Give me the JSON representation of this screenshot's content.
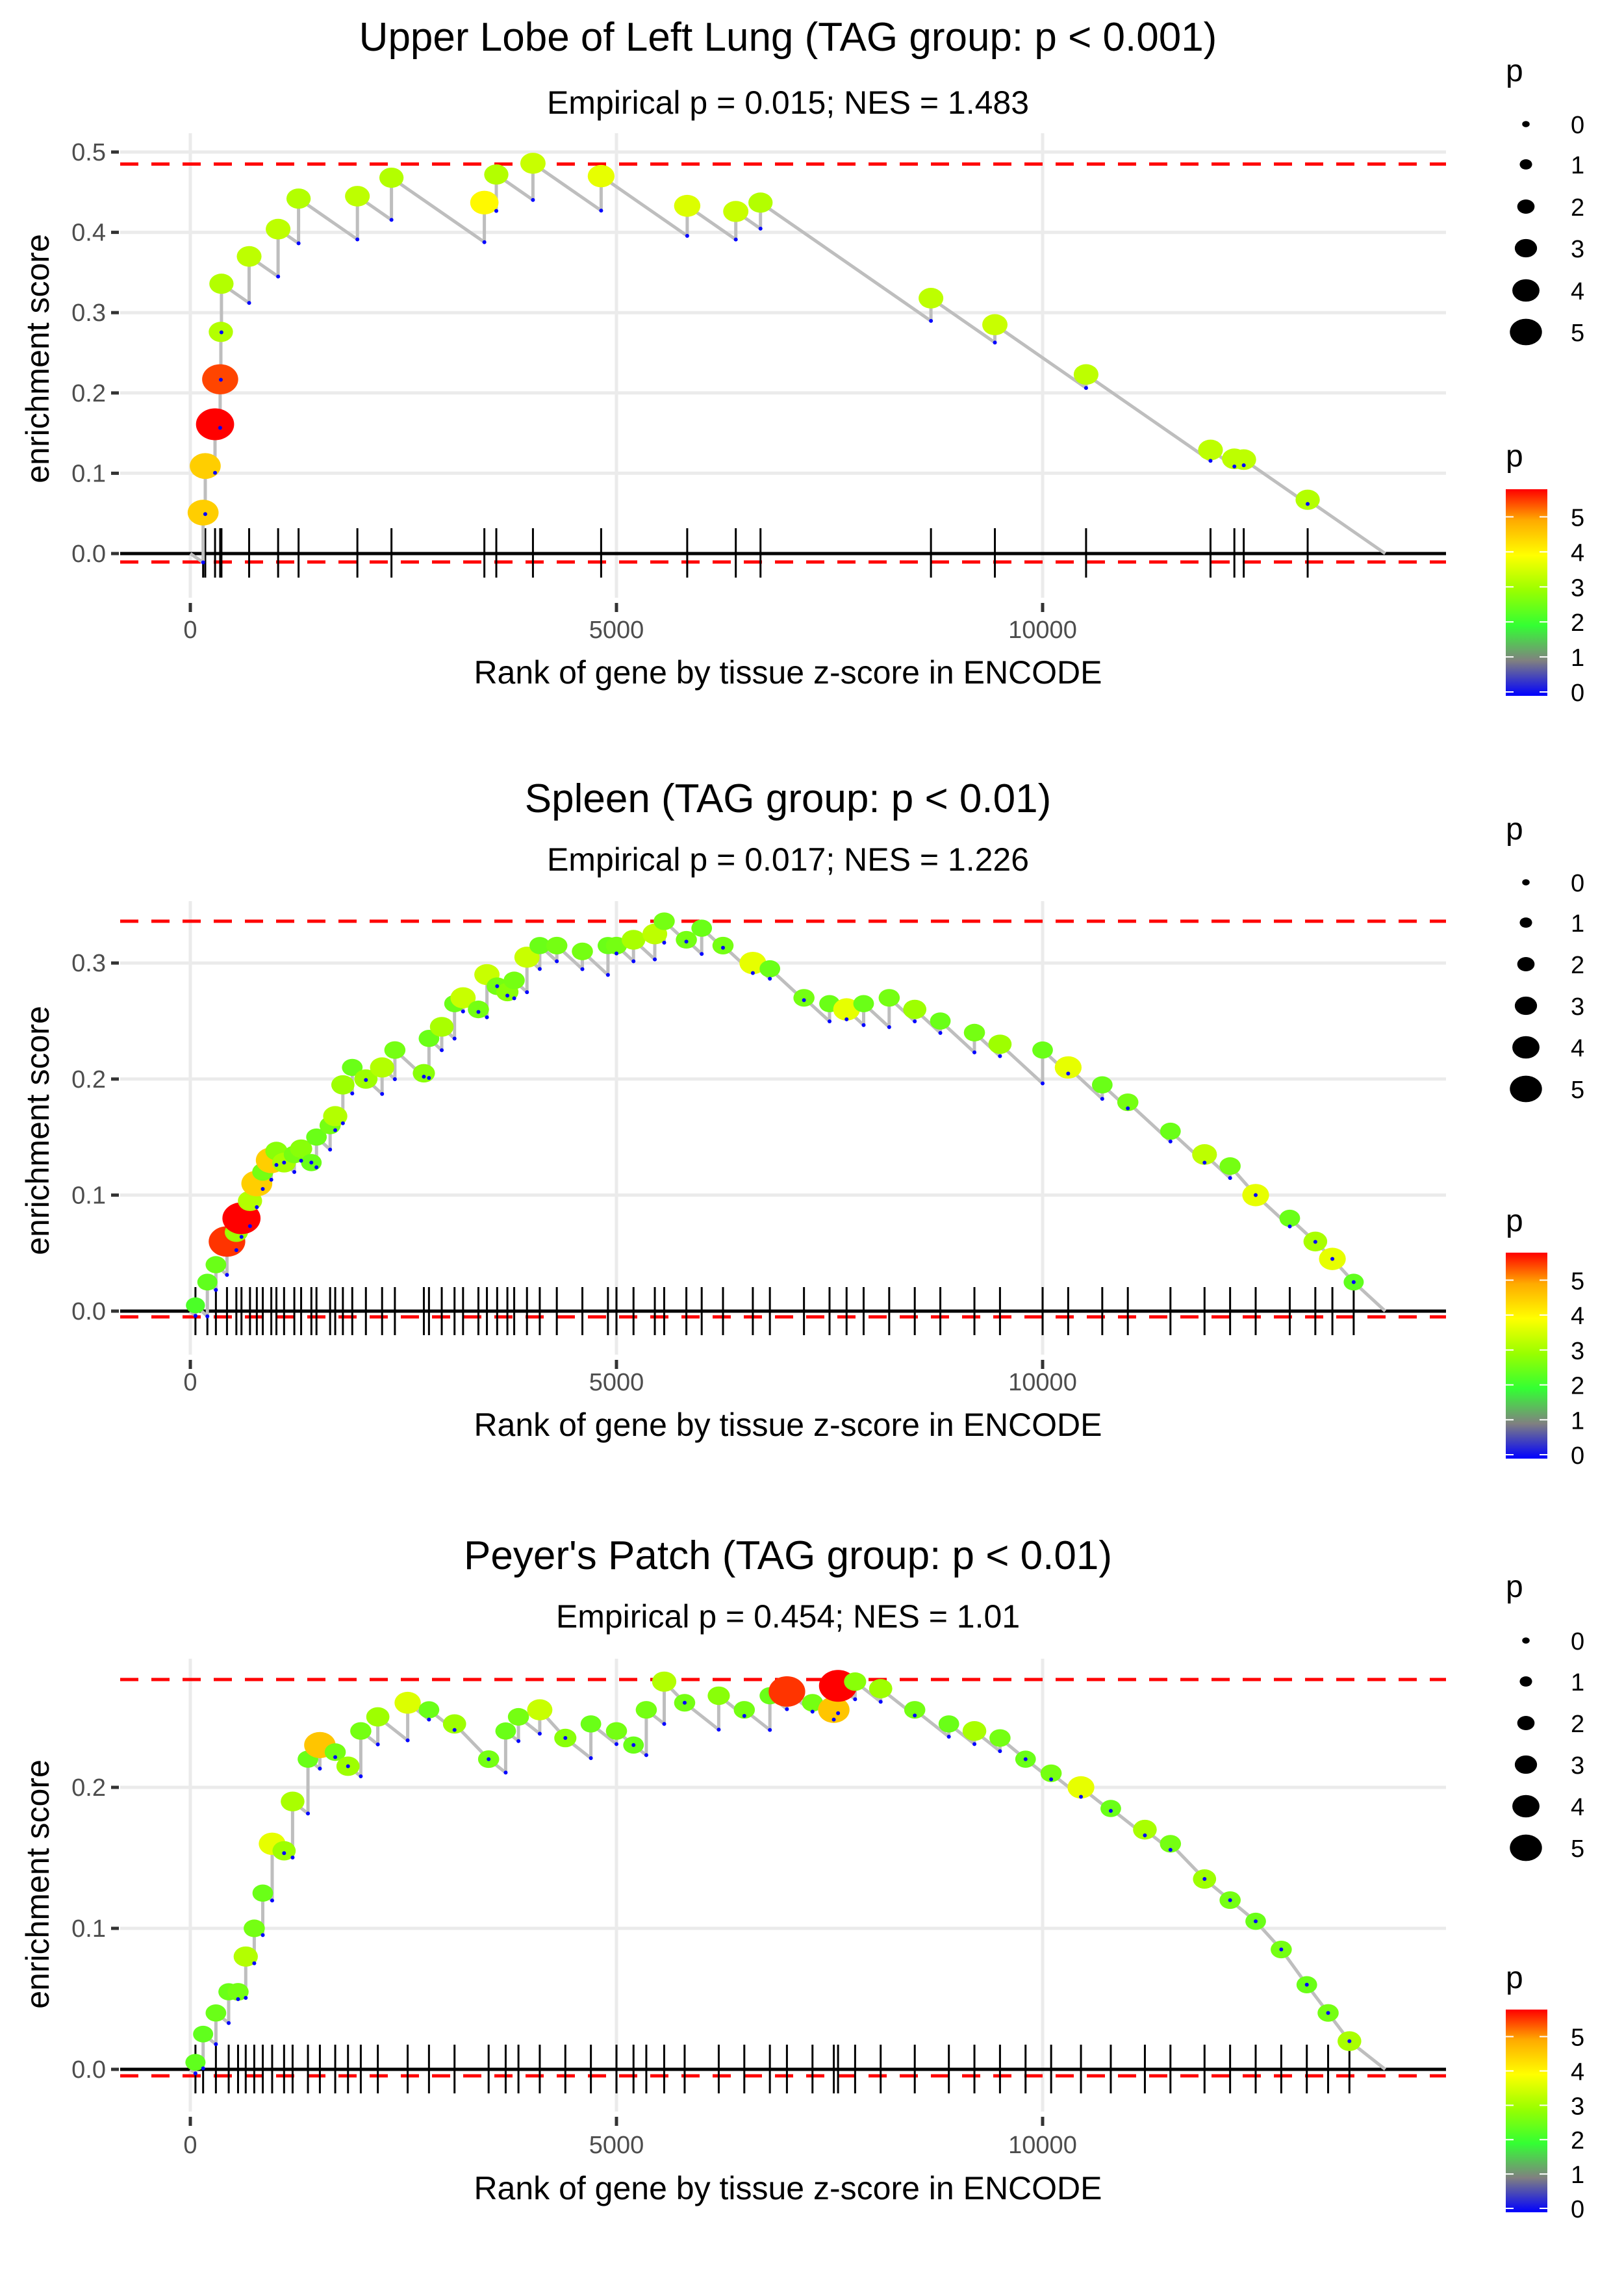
{
  "chart_data": [
    {
      "type": "line",
      "title": "Upper Lobe of Left Lung (TAG group: p < 0.001)",
      "subtitle": "Empirical p = 0.015; NES = 1.483",
      "xlabel": "Rank of gene by tissue z-score in ENCODE",
      "ylabel": "enrichment score",
      "xlim": [
        -700,
        14700
      ],
      "ylim": [
        -0.05,
        0.5
      ],
      "x_ticks": [
        0,
        5000,
        10000
      ],
      "x_tick_labels": [
        "0",
        "5000",
        "10000"
      ],
      "y_ticks": [
        0.0,
        0.1,
        0.2,
        0.3,
        0.4,
        0.5
      ],
      "y_tick_labels": [
        "0.0",
        "0.1",
        "0.2",
        "0.3",
        "0.4",
        "0.5"
      ],
      "max_es_line": 0.485,
      "min_es_line": -0.0105,
      "n_genes": 14020,
      "grid": true,
      "hits": [
        {
          "rank": 150,
          "es": 0.051,
          "p": 4.5
        },
        {
          "rank": 175,
          "es": 0.109,
          "p": 4.5
        },
        {
          "rank": 290,
          "es": 0.161,
          "p": 5.9
        },
        {
          "rank": 350,
          "es": 0.217,
          "p": 5.5
        },
        {
          "rank": 358,
          "es": 0.276,
          "p": 3.2
        },
        {
          "rank": 365,
          "es": 0.336,
          "p": 3.2
        },
        {
          "rank": 690,
          "es": 0.37,
          "p": 3.3
        },
        {
          "rank": 1030,
          "es": 0.404,
          "p": 3.3
        },
        {
          "rank": 1270,
          "es": 0.442,
          "p": 3.2
        },
        {
          "rank": 1960,
          "es": 0.445,
          "p": 3.3
        },
        {
          "rank": 2360,
          "es": 0.468,
          "p": 3.2
        },
        {
          "rank": 3450,
          "es": 0.437,
          "p": 4.0
        },
        {
          "rank": 3590,
          "es": 0.472,
          "p": 3.2
        },
        {
          "rank": 4020,
          "es": 0.486,
          "p": 3.4
        },
        {
          "rank": 4820,
          "es": 0.47,
          "p": 3.7
        },
        {
          "rank": 5830,
          "es": 0.433,
          "p": 3.6
        },
        {
          "rank": 6400,
          "es": 0.426,
          "p": 3.4
        },
        {
          "rank": 6690,
          "es": 0.437,
          "p": 3.2
        },
        {
          "rank": 8690,
          "es": 0.318,
          "p": 3.3
        },
        {
          "rank": 9440,
          "es": 0.285,
          "p": 3.4
        },
        {
          "rank": 10510,
          "es": 0.223,
          "p": 3.3
        },
        {
          "rank": 11970,
          "es": 0.129,
          "p": 3.3
        },
        {
          "rank": 12250,
          "es": 0.118,
          "p": 3.3
        },
        {
          "rank": 12360,
          "es": 0.117,
          "p": 3.3
        },
        {
          "rank": 13110,
          "es": 0.067,
          "p": 3.2
        }
      ]
    },
    {
      "type": "line",
      "title": "Spleen (TAG group: p < 0.01)",
      "subtitle": "Empirical p = 0.017; NES = 1.226",
      "xlabel": "Rank of gene by tissue z-score in ENCODE",
      "ylabel": "enrichment score",
      "xlim": [
        -700,
        14700
      ],
      "ylim": [
        -0.04,
        0.345
      ],
      "x_ticks": [
        0,
        5000,
        10000
      ],
      "x_tick_labels": [
        "0",
        "5000",
        "10000"
      ],
      "y_ticks": [
        0.0,
        0.1,
        0.2,
        0.3
      ],
      "y_tick_labels": [
        "0.0",
        "0.1",
        "0.2",
        "0.3"
      ],
      "max_es_line": 0.336,
      "min_es_line": -0.005,
      "n_genes": 14020,
      "grid": true,
      "hits": [
        {
          "rank": 60,
          "es": 0.005,
          "p": 2.2
        },
        {
          "rank": 200,
          "es": 0.025,
          "p": 2.4
        },
        {
          "rank": 300,
          "es": 0.04,
          "p": 2.5
        },
        {
          "rank": 430,
          "es": 0.06,
          "p": 5.6
        },
        {
          "rank": 540,
          "es": 0.068,
          "p": 3.0
        },
        {
          "rank": 600,
          "es": 0.08,
          "p": 5.9
        },
        {
          "rank": 700,
          "es": 0.095,
          "p": 3.2
        },
        {
          "rank": 780,
          "es": 0.11,
          "p": 4.5
        },
        {
          "rank": 850,
          "es": 0.12,
          "p": 2.6
        },
        {
          "rank": 950,
          "es": 0.13,
          "p": 4.5
        },
        {
          "rank": 1010,
          "es": 0.138,
          "p": 2.8
        },
        {
          "rank": 1100,
          "es": 0.128,
          "p": 3.1
        },
        {
          "rank": 1220,
          "es": 0.135,
          "p": 2.6
        },
        {
          "rank": 1300,
          "es": 0.14,
          "p": 2.8
        },
        {
          "rank": 1420,
          "es": 0.128,
          "p": 2.5
        },
        {
          "rank": 1480,
          "es": 0.15,
          "p": 2.5
        },
        {
          "rank": 1640,
          "es": 0.16,
          "p": 2.6
        },
        {
          "rank": 1700,
          "es": 0.168,
          "p": 3.2
        },
        {
          "rank": 1790,
          "es": 0.195,
          "p": 3.0
        },
        {
          "rank": 1900,
          "es": 0.21,
          "p": 2.5
        },
        {
          "rank": 2060,
          "es": 0.2,
          "p": 3.0
        },
        {
          "rank": 2250,
          "es": 0.21,
          "p": 3.2
        },
        {
          "rank": 2400,
          "es": 0.225,
          "p": 2.6
        },
        {
          "rank": 2740,
          "es": 0.205,
          "p": 2.8
        },
        {
          "rank": 2800,
          "es": 0.235,
          "p": 2.5
        },
        {
          "rank": 2950,
          "es": 0.245,
          "p": 3.1
        },
        {
          "rank": 3100,
          "es": 0.265,
          "p": 2.5
        },
        {
          "rank": 3200,
          "es": 0.27,
          "p": 3.4
        },
        {
          "rank": 3380,
          "es": 0.26,
          "p": 2.6
        },
        {
          "rank": 3480,
          "es": 0.29,
          "p": 3.4
        },
        {
          "rank": 3600,
          "es": 0.28,
          "p": 2.6
        },
        {
          "rank": 3720,
          "es": 0.275,
          "p": 2.8
        },
        {
          "rank": 3800,
          "es": 0.285,
          "p": 2.6
        },
        {
          "rank": 3950,
          "es": 0.305,
          "p": 3.4
        },
        {
          "rank": 4100,
          "es": 0.315,
          "p": 2.5
        },
        {
          "rank": 4300,
          "es": 0.315,
          "p": 2.6
        },
        {
          "rank": 4600,
          "es": 0.31,
          "p": 2.6
        },
        {
          "rank": 4900,
          "es": 0.315,
          "p": 2.5
        },
        {
          "rank": 5000,
          "es": 0.315,
          "p": 2.6
        },
        {
          "rank": 5200,
          "es": 0.32,
          "p": 3.1
        },
        {
          "rank": 5450,
          "es": 0.325,
          "p": 3.3
        },
        {
          "rank": 5560,
          "es": 0.336,
          "p": 2.6
        },
        {
          "rank": 5820,
          "es": 0.32,
          "p": 2.6
        },
        {
          "rank": 6000,
          "es": 0.33,
          "p": 2.5
        },
        {
          "rank": 6250,
          "es": 0.315,
          "p": 2.6
        },
        {
          "rank": 6600,
          "es": 0.3,
          "p": 3.7
        },
        {
          "rank": 6800,
          "es": 0.295,
          "p": 2.5
        },
        {
          "rank": 7200,
          "es": 0.27,
          "p": 2.6
        },
        {
          "rank": 7500,
          "es": 0.265,
          "p": 2.5
        },
        {
          "rank": 7700,
          "es": 0.26,
          "p": 3.7
        },
        {
          "rank": 7900,
          "es": 0.265,
          "p": 2.5
        },
        {
          "rank": 8200,
          "es": 0.27,
          "p": 2.6
        },
        {
          "rank": 8500,
          "es": 0.26,
          "p": 3.0
        },
        {
          "rank": 8800,
          "es": 0.25,
          "p": 2.5
        },
        {
          "rank": 9200,
          "es": 0.24,
          "p": 2.6
        },
        {
          "rank": 9500,
          "es": 0.23,
          "p": 3.0
        },
        {
          "rank": 10000,
          "es": 0.225,
          "p": 2.5
        },
        {
          "rank": 10300,
          "es": 0.21,
          "p": 3.7
        },
        {
          "rank": 10700,
          "es": 0.195,
          "p": 2.5
        },
        {
          "rank": 11000,
          "es": 0.18,
          "p": 2.6
        },
        {
          "rank": 11500,
          "es": 0.155,
          "p": 2.5
        },
        {
          "rank": 11900,
          "es": 0.135,
          "p": 3.3
        },
        {
          "rank": 12200,
          "es": 0.125,
          "p": 2.6
        },
        {
          "rank": 12500,
          "es": 0.1,
          "p": 3.7
        },
        {
          "rank": 12900,
          "es": 0.08,
          "p": 2.5
        },
        {
          "rank": 13200,
          "es": 0.06,
          "p": 3.1
        },
        {
          "rank": 13400,
          "es": 0.045,
          "p": 3.7
        },
        {
          "rank": 13650,
          "es": 0.025,
          "p": 2.4
        }
      ]
    },
    {
      "type": "line",
      "title": "Peyer's Patch (TAG group: p < 0.01)",
      "subtitle": "Empirical p = 0.454; NES = 1.01",
      "xlabel": "Rank of gene by tissue z-score in ENCODE",
      "ylabel": "enrichment score",
      "xlim": [
        -700,
        14700
      ],
      "ylim": [
        -0.03,
        0.285
      ],
      "x_ticks": [
        0,
        5000,
        10000
      ],
      "x_tick_labels": [
        "0",
        "5000",
        "10000"
      ],
      "y_ticks": [
        0.0,
        0.1,
        0.2
      ],
      "y_tick_labels": [
        "0.0",
        "0.1",
        "0.2"
      ],
      "max_es_line": 0.2765,
      "min_es_line": -0.0046,
      "n_genes": 14020,
      "grid": true,
      "hits": [
        {
          "rank": 60,
          "es": 0.005,
          "p": 2.4
        },
        {
          "rank": 150,
          "es": 0.025,
          "p": 2.4
        },
        {
          "rank": 300,
          "es": 0.04,
          "p": 2.5
        },
        {
          "rank": 450,
          "es": 0.055,
          "p": 2.5
        },
        {
          "rank": 560,
          "es": 0.055,
          "p": 2.6
        },
        {
          "rank": 650,
          "es": 0.08,
          "p": 3.2
        },
        {
          "rank": 750,
          "es": 0.1,
          "p": 2.6
        },
        {
          "rank": 850,
          "es": 0.125,
          "p": 2.5
        },
        {
          "rank": 960,
          "es": 0.16,
          "p": 3.7
        },
        {
          "rank": 1100,
          "es": 0.155,
          "p": 3.0
        },
        {
          "rank": 1200,
          "es": 0.19,
          "p": 3.1
        },
        {
          "rank": 1380,
          "es": 0.22,
          "p": 2.5
        },
        {
          "rank": 1520,
          "es": 0.23,
          "p": 4.6
        },
        {
          "rank": 1700,
          "es": 0.225,
          "p": 2.6
        },
        {
          "rank": 1850,
          "es": 0.215,
          "p": 3.0
        },
        {
          "rank": 2000,
          "es": 0.24,
          "p": 2.6
        },
        {
          "rank": 2200,
          "es": 0.25,
          "p": 3.0
        },
        {
          "rank": 2550,
          "es": 0.26,
          "p": 3.6
        },
        {
          "rank": 2800,
          "es": 0.255,
          "p": 2.5
        },
        {
          "rank": 3100,
          "es": 0.245,
          "p": 3.0
        },
        {
          "rank": 3500,
          "es": 0.22,
          "p": 2.6
        },
        {
          "rank": 3700,
          "es": 0.24,
          "p": 2.5
        },
        {
          "rank": 3850,
          "es": 0.25,
          "p": 2.6
        },
        {
          "rank": 4100,
          "es": 0.255,
          "p": 3.4
        },
        {
          "rank": 4400,
          "es": 0.235,
          "p": 2.8
        },
        {
          "rank": 4700,
          "es": 0.245,
          "p": 2.5
        },
        {
          "rank": 5000,
          "es": 0.24,
          "p": 2.6
        },
        {
          "rank": 5200,
          "es": 0.23,
          "p": 2.5
        },
        {
          "rank": 5350,
          "es": 0.255,
          "p": 2.6
        },
        {
          "rank": 5560,
          "es": 0.275,
          "p": 3.2
        },
        {
          "rank": 5800,
          "es": 0.26,
          "p": 2.6
        },
        {
          "rank": 6200,
          "es": 0.265,
          "p": 2.8
        },
        {
          "rank": 6500,
          "es": 0.255,
          "p": 2.6
        },
        {
          "rank": 6800,
          "es": 0.265,
          "p": 2.5
        },
        {
          "rank": 7000,
          "es": 0.268,
          "p": 5.6
        },
        {
          "rank": 7300,
          "es": 0.26,
          "p": 2.6
        },
        {
          "rank": 7550,
          "es": 0.255,
          "p": 4.6
        },
        {
          "rank": 7600,
          "es": 0.272,
          "p": 5.9
        },
        {
          "rank": 7800,
          "es": 0.275,
          "p": 2.8
        },
        {
          "rank": 8100,
          "es": 0.27,
          "p": 3.0
        },
        {
          "rank": 8500,
          "es": 0.255,
          "p": 2.6
        },
        {
          "rank": 8900,
          "es": 0.245,
          "p": 2.5
        },
        {
          "rank": 9200,
          "es": 0.24,
          "p": 3.1
        },
        {
          "rank": 9500,
          "es": 0.235,
          "p": 2.6
        },
        {
          "rank": 9800,
          "es": 0.22,
          "p": 2.5
        },
        {
          "rank": 10100,
          "es": 0.21,
          "p": 2.6
        },
        {
          "rank": 10450,
          "es": 0.2,
          "p": 3.7
        },
        {
          "rank": 10800,
          "es": 0.185,
          "p": 2.5
        },
        {
          "rank": 11200,
          "es": 0.17,
          "p": 3.1
        },
        {
          "rank": 11500,
          "es": 0.16,
          "p": 2.6
        },
        {
          "rank": 11900,
          "es": 0.135,
          "p": 3.0
        },
        {
          "rank": 12200,
          "es": 0.12,
          "p": 2.6
        },
        {
          "rank": 12500,
          "es": 0.105,
          "p": 2.5
        },
        {
          "rank": 12800,
          "es": 0.085,
          "p": 2.6
        },
        {
          "rank": 13100,
          "es": 0.06,
          "p": 2.5
        },
        {
          "rank": 13350,
          "es": 0.04,
          "p": 2.6
        },
        {
          "rank": 13600,
          "es": 0.02,
          "p": 3.1
        }
      ]
    }
  ],
  "legend": {
    "size_title": "p",
    "size_breaks": [
      0,
      1,
      2,
      3,
      4,
      5
    ],
    "size_labels": [
      "0",
      "1",
      "2",
      "3",
      "4",
      "5"
    ],
    "color_title": "p",
    "color_breaks": [
      0,
      1,
      2,
      3,
      4,
      5
    ],
    "color_labels": [
      "0",
      "1",
      "2",
      "3",
      "4",
      "5"
    ],
    "color_range": [
      0,
      5.9
    ],
    "color_stops": [
      "#0000ff",
      "#808080",
      "#33ff33",
      "#99ff00",
      "#ffff00",
      "#ffaa00",
      "#ff0000"
    ]
  },
  "colors": {
    "es_line": "#bebebe",
    "max_line": "#ff0000",
    "grid": "#ebebeb",
    "baseline": "#000000",
    "rug": "#000000",
    "miss_point": "#0000ff"
  }
}
